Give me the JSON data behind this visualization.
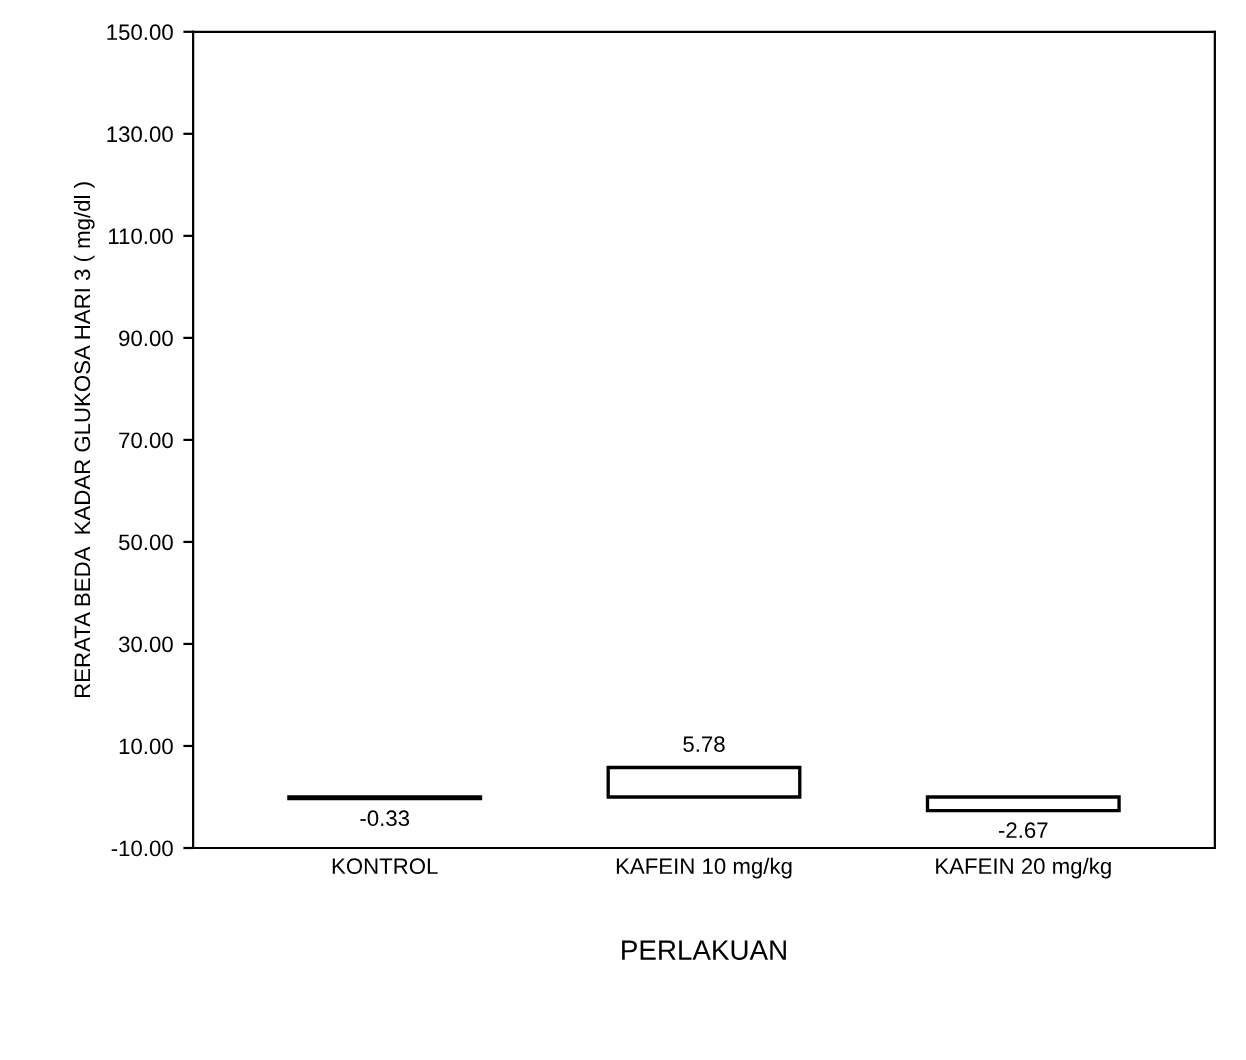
{
  "chart_data": {
    "type": "bar",
    "categories": [
      "KONTROL",
      "KAFEIN 10 mg/kg",
      "KAFEIN 20 mg/kg"
    ],
    "values": [
      -0.33,
      5.78,
      -2.67
    ],
    "color": "#ffffff",
    "data_labels": true,
    "xlabel": "PERLAKUAN",
    "ylabel": "RERATA BEDA  KADAR GLUKOSA HARI 3 ( mg/dl )",
    "ylim": [
      -10,
      150
    ],
    "yticks": [
      {
        "value": -10,
        "label": "-10.00"
      },
      {
        "value": 10,
        "label": "10.00"
      },
      {
        "value": 30,
        "label": "30.00"
      },
      {
        "value": 50,
        "label": "50.00"
      },
      {
        "value": 70,
        "label": "70.00"
      },
      {
        "value": 90,
        "label": "90.00"
      },
      {
        "value": 110,
        "label": "110.00"
      },
      {
        "value": 130,
        "label": "130.00"
      },
      {
        "value": 150,
        "label": "150.00"
      }
    ],
    "grid": false
  }
}
